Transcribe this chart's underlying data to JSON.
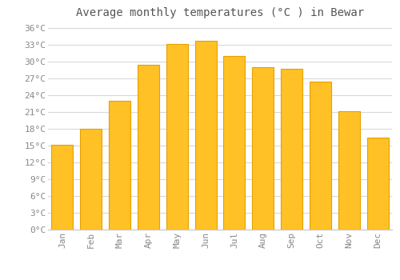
{
  "title": "Average monthly temperatures (°C ) in Bewar",
  "months": [
    "Jan",
    "Feb",
    "Mar",
    "Apr",
    "May",
    "Jun",
    "Jul",
    "Aug",
    "Sep",
    "Oct",
    "Nov",
    "Dec"
  ],
  "values": [
    15.2,
    18.0,
    23.0,
    29.5,
    33.2,
    33.7,
    31.0,
    29.0,
    28.7,
    26.4,
    21.2,
    16.5
  ],
  "bar_color": "#FFC125",
  "bar_edge_color": "#E8A000",
  "background_color": "#ffffff",
  "grid_color": "#d8d8d8",
  "tick_label_color": "#888888",
  "title_color": "#555555",
  "ylim": [
    0,
    37
  ],
  "yticks": [
    0,
    3,
    6,
    9,
    12,
    15,
    18,
    21,
    24,
    27,
    30,
    33,
    36
  ],
  "ytick_labels": [
    "0°C",
    "3°C",
    "6°C",
    "9°C",
    "12°C",
    "15°C",
    "18°C",
    "21°C",
    "24°C",
    "27°C",
    "30°C",
    "33°C",
    "36°C"
  ],
  "title_fontsize": 10,
  "tick_fontsize": 8,
  "font_family": "monospace",
  "bar_width": 0.75
}
